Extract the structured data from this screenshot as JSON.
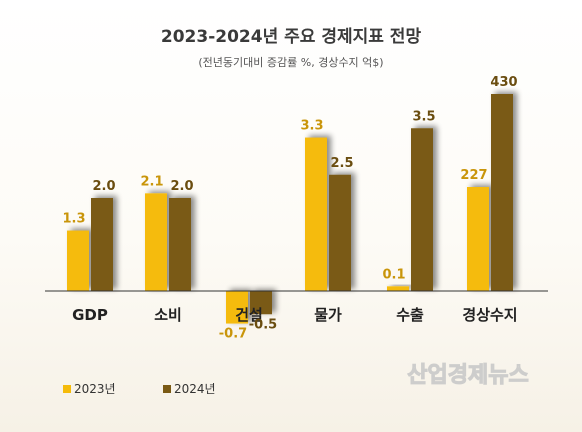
{
  "chart_data": {
    "type": "bar",
    "title": "2023-2024년 주요 경제지표 전망",
    "subtitle": "(전년동기대비 증감률 %, 경상수지 억$)",
    "categories": [
      "GDP",
      "소비",
      "건설",
      "물가",
      "수출",
      "경상수지"
    ],
    "series": [
      {
        "name": "2023년",
        "color": "#f5bb0a",
        "values": [
          1.3,
          2.1,
          -0.7,
          3.3,
          0.1,
          227
        ],
        "labels": [
          "1.3",
          "2.1",
          "-0.7",
          "3.3",
          "0.1",
          "227"
        ]
      },
      {
        "name": "2024년",
        "color": "#7a5a14",
        "values": [
          2.0,
          2.0,
          -0.5,
          2.5,
          3.5,
          430
        ],
        "labels": [
          "2.0",
          "2.0",
          "-0.5",
          "2.5",
          "3.5",
          "430"
        ]
      }
    ],
    "notes": "경상수지 values are in 억$ and drawn on a separate scale from the % indicators",
    "grid": false,
    "legend_position": "bottom-left"
  },
  "watermark": "산업경제뉴스"
}
